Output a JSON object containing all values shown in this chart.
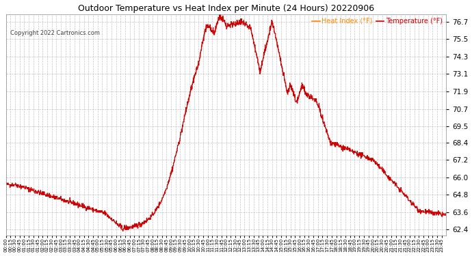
{
  "title": "Outdoor Temperature vs Heat Index per Minute (24 Hours) 20220906",
  "copyright": "Copyright 2022 Cartronics.com",
  "legend_heat": "Heat Index (°F)",
  "legend_temp": "Temperature (°F)",
  "bg_color": "#ffffff",
  "plot_bg_color": "#ffffff",
  "text_color": "#000000",
  "copyright_color": "#444444",
  "line_color_heat": "#cc0000",
  "line_color_temp": "#cc0000",
  "legend_color_heat": "#ff8800",
  "legend_color_temp": "#cc0000",
  "grid_color": "#aaaaaa",
  "yticks": [
    62.4,
    63.6,
    64.8,
    66.0,
    67.2,
    68.4,
    69.5,
    70.7,
    71.9,
    73.1,
    74.3,
    75.5,
    76.7
  ],
  "ymin": 62.0,
  "ymax": 77.2,
  "figsize": [
    6.9,
    3.75
  ],
  "dpi": 100
}
